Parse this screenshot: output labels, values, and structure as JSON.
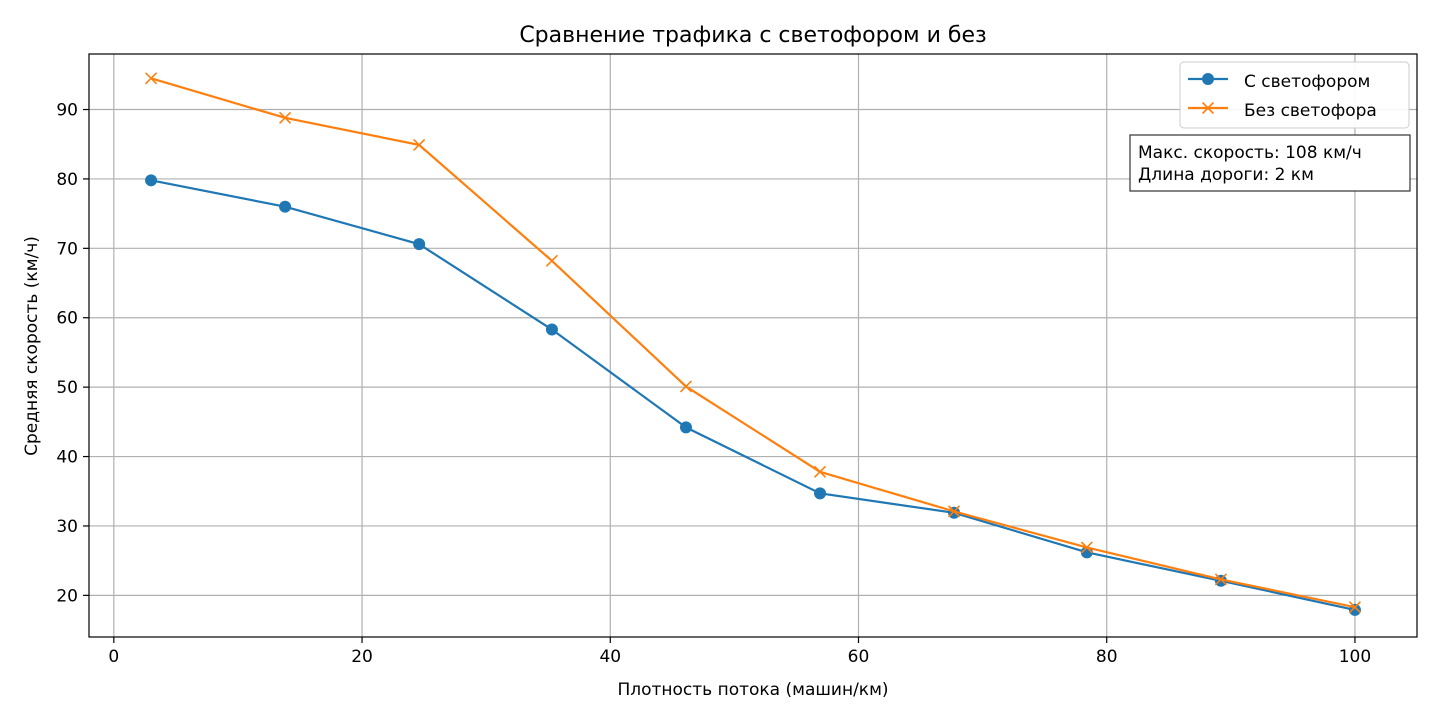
{
  "chart_data": {
    "type": "line",
    "title": "Сравнение трафика с светофором и без",
    "xlabel": "Плотность потока (машин/км)",
    "ylabel": "Средняя скорость (км/ч)",
    "xlim": [
      -2,
      105
    ],
    "ylim": [
      14,
      98
    ],
    "xticks": [
      0,
      20,
      40,
      60,
      80,
      100
    ],
    "yticks": [
      20,
      30,
      40,
      50,
      60,
      70,
      80,
      90
    ],
    "grid": true,
    "legend_position": "top-right",
    "x": [
      3.0,
      13.8,
      24.6,
      35.3,
      46.1,
      56.9,
      67.7,
      78.4,
      89.2,
      100.0
    ],
    "series": [
      {
        "name": "С светофором",
        "marker": "circle",
        "color": "#1f77b4",
        "values": [
          79.8,
          76.0,
          70.6,
          58.3,
          44.2,
          34.7,
          31.9,
          26.2,
          22.1,
          17.9
        ]
      },
      {
        "name": "Без светофора",
        "marker": "x",
        "color": "#ff7f0e",
        "values": [
          94.5,
          88.8,
          84.9,
          68.2,
          50.1,
          37.8,
          32.1,
          26.9,
          22.3,
          18.3
        ]
      }
    ],
    "annotation": {
      "lines": [
        "Макс. скорость: 108 км/ч",
        "Длина дороги: 2 км"
      ]
    }
  }
}
